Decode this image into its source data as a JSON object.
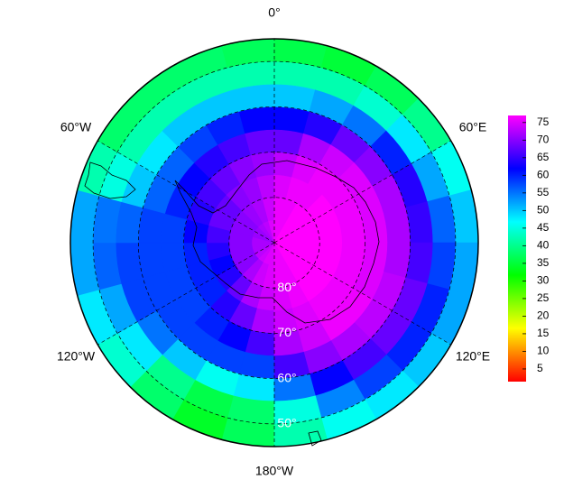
{
  "chart_data": {
    "type": "polar-heatmap",
    "rlim": [
      -90,
      -45
    ],
    "lat_bins": [
      -90,
      -85,
      -80,
      -75,
      -70,
      -65,
      -60,
      -55,
      -50,
      -45
    ],
    "lon_bins": [
      -180,
      -165,
      -150,
      -135,
      -120,
      -105,
      -90,
      -75,
      -60,
      -45,
      -30,
      -15,
      0,
      15,
      30,
      45,
      60,
      75,
      90,
      105,
      120,
      135,
      150,
      165,
      180
    ],
    "values": [
      [
        75,
        75,
        74,
        72,
        66,
        58,
        48,
        38,
        37
      ],
      [
        75,
        74,
        72,
        68,
        62,
        58,
        46,
        36,
        34
      ],
      [
        74,
        72,
        68,
        64,
        60,
        58,
        50,
        40,
        38
      ],
      [
        73,
        70,
        64,
        60,
        58,
        58,
        55,
        48,
        44
      ],
      [
        72,
        70,
        62,
        60,
        58,
        58,
        58,
        52,
        48
      ],
      [
        72,
        70,
        64,
        60,
        58,
        58,
        58,
        56,
        52
      ],
      [
        72,
        70,
        66,
        62,
        58,
        58,
        56,
        55,
        52
      ],
      [
        71,
        70,
        68,
        64,
        60,
        56,
        50,
        45,
        42
      ],
      [
        71,
        70,
        68,
        66,
        62,
        56,
        48,
        42,
        38
      ],
      [
        72,
        71,
        70,
        68,
        64,
        58,
        50,
        42,
        38
      ],
      [
        73,
        72,
        71,
        70,
        66,
        60,
        50,
        42,
        38
      ],
      [
        75,
        74,
        73,
        71,
        68,
        62,
        50,
        42,
        37
      ],
      [
        76,
        76,
        75,
        73,
        68,
        62,
        50,
        42,
        36
      ],
      [
        76,
        76,
        76,
        75,
        72,
        64,
        52,
        42,
        35
      ],
      [
        77,
        77,
        76,
        76,
        74,
        68,
        55,
        44,
        37
      ],
      [
        77,
        77,
        77,
        76,
        75,
        70,
        60,
        48,
        40
      ],
      [
        77,
        77,
        77,
        76,
        75,
        72,
        64,
        52,
        46
      ],
      [
        77,
        77,
        77,
        76,
        75,
        72,
        65,
        56,
        50
      ],
      [
        77,
        77,
        77,
        76,
        75,
        72,
        66,
        58,
        52
      ],
      [
        77,
        77,
        77,
        76,
        75,
        73,
        68,
        60,
        52
      ],
      [
        77,
        77,
        77,
        76,
        76,
        73,
        68,
        60,
        50
      ],
      [
        77,
        77,
        77,
        76,
        76,
        72,
        66,
        58,
        48
      ],
      [
        76,
        76,
        76,
        75,
        74,
        70,
        62,
        54,
        46
      ],
      [
        76,
        76,
        75,
        74,
        72,
        66,
        55,
        45,
        42
      ]
    ],
    "rticks": [
      {
        "value": -80,
        "label": "80°"
      },
      {
        "value": -70,
        "label": "70°"
      },
      {
        "value": -60,
        "label": "60°"
      },
      {
        "value": -50,
        "label": "50°"
      }
    ],
    "lonticks": [
      {
        "value": 0,
        "label": "0°"
      },
      {
        "value": 60,
        "label": "60°E"
      },
      {
        "value": 120,
        "label": "120°E"
      },
      {
        "value": 180,
        "label": "180°W"
      },
      {
        "value": -120,
        "label": "120°W"
      },
      {
        "value": -60,
        "label": "60°W"
      }
    ],
    "colormap": [
      "#ff0000",
      "#ffff00",
      "#00ff00",
      "#00ffff",
      "#0000ff",
      "#ff00ff"
    ],
    "clim": [
      1.4,
      77
    ],
    "cticks": [
      5,
      10,
      15,
      20,
      25,
      30,
      35,
      40,
      45,
      50,
      55,
      60,
      65,
      70,
      75
    ],
    "grid": true
  }
}
